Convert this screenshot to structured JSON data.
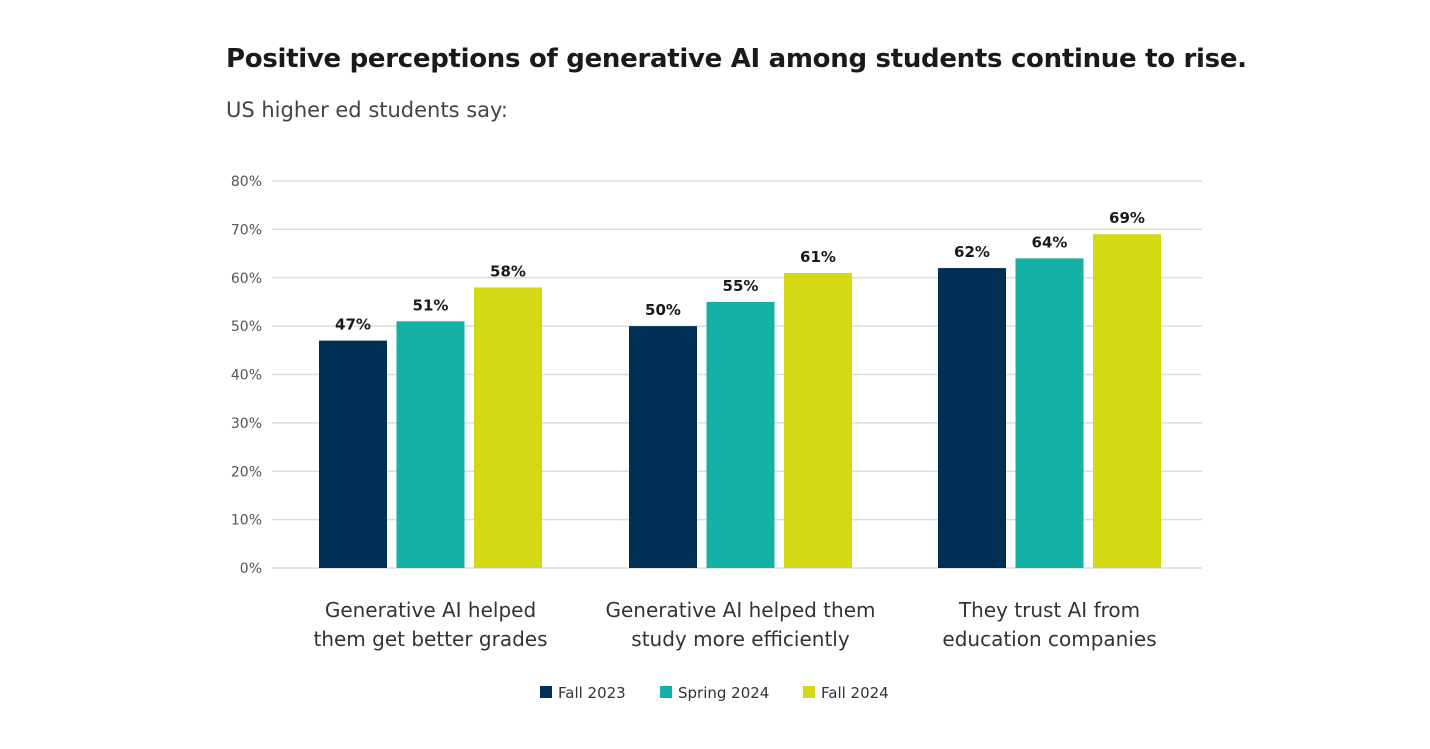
{
  "chart_data": {
    "type": "bar",
    "title": "Positive perceptions of generative AI among students continue to rise.",
    "subtitle": "US higher ed students say:",
    "categories": [
      [
        "Generative AI helped",
        "them get better grades"
      ],
      [
        "Generative AI helped them",
        "study more efficiently"
      ],
      [
        "They trust AI from",
        "education companies"
      ]
    ],
    "series": [
      {
        "name": "Fall 2023",
        "color": "#002f56",
        "values": [
          47,
          50,
          62
        ]
      },
      {
        "name": "Spring 2024",
        "color": "#14b1a7",
        "values": [
          51,
          55,
          64
        ]
      },
      {
        "name": "Fall 2024",
        "color": "#d3d913",
        "values": [
          58,
          61,
          69
        ]
      }
    ],
    "yticks": [
      "0%",
      "10%",
      "20%",
      "30%",
      "40%",
      "50%",
      "60%",
      "70%",
      "80%"
    ],
    "ylim": [
      0,
      80
    ],
    "value_suffix": "%",
    "grid": true,
    "legend": "bottom"
  }
}
